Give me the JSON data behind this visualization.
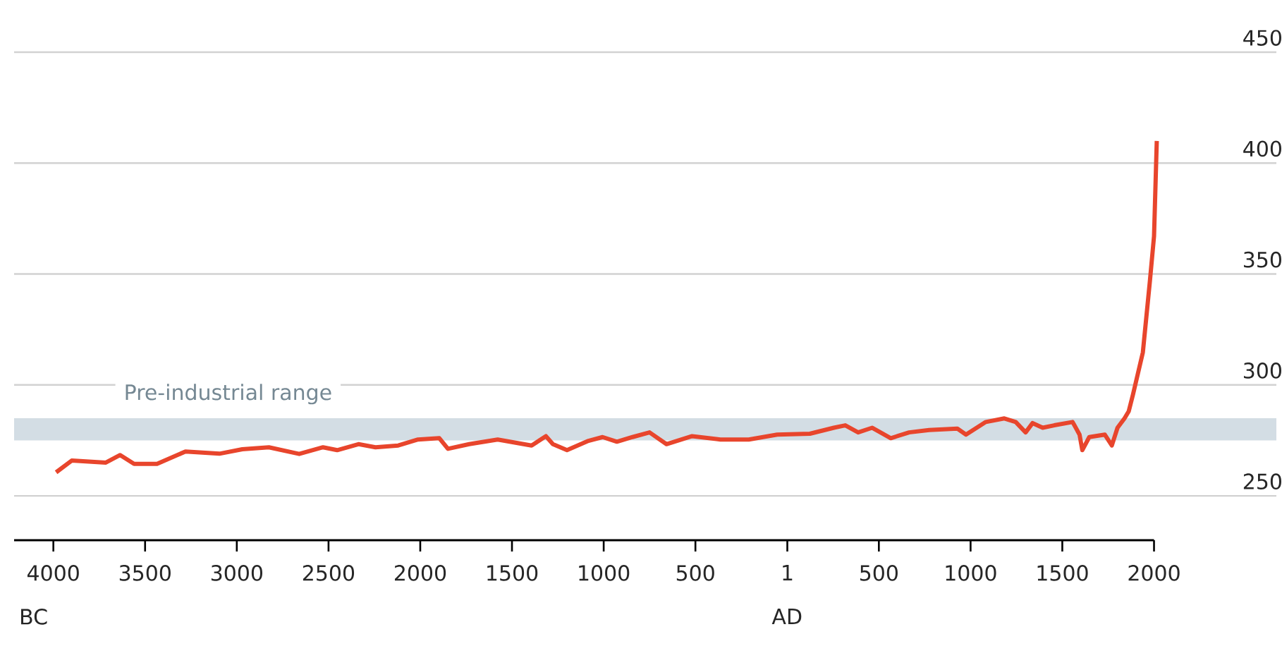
{
  "chart_data": {
    "type": "line",
    "x": [
      -3985,
      -3900,
      -3714,
      -3636,
      -3560,
      -3435,
      -3280,
      -3095,
      -2970,
      -2825,
      -2660,
      -2530,
      -2453,
      -2337,
      -2244,
      -2120,
      -2012,
      -1896,
      -1849,
      -1733,
      -1578,
      -1393,
      -1315,
      -1277,
      -1200,
      -1083,
      -1006,
      -928,
      -843,
      -750,
      -658,
      -518,
      -364,
      -209,
      -54,
      124,
      255,
      317,
      387,
      464,
      565,
      665,
      774,
      928,
      975,
      1083,
      1184,
      1246,
      1300,
      1338,
      1393,
      1456,
      1556,
      1594,
      1609,
      1647,
      1732,
      1770,
      1801,
      1839,
      1862,
      1885,
      1939,
      1977,
      2000,
      2015
    ],
    "series": [
      {
        "color": "#e8452c",
        "values": [
          260.6,
          265.9,
          265,
          268.4,
          264.4,
          264.4,
          270,
          269,
          271,
          271.9,
          268.9,
          271.9,
          270.6,
          273.3,
          271.9,
          272.7,
          275.4,
          276,
          271.2,
          273.3,
          275.4,
          272.7,
          276.9,
          273.3,
          270.6,
          274.8,
          276.5,
          274.4,
          276.5,
          278.6,
          273.3,
          276.9,
          275.4,
          275.4,
          277.6,
          278,
          280.7,
          281.8,
          278.6,
          280.7,
          276,
          278.6,
          279.7,
          280.3,
          277.6,
          283.3,
          284.9,
          283.3,
          278.6,
          282.8,
          280.7,
          281.8,
          283.3,
          277.6,
          270.6,
          276.5,
          277.6,
          272.7,
          280.7,
          284.9,
          288.1,
          295.6,
          314.6,
          346.4,
          367,
          410
        ]
      }
    ],
    "xlim": [
      -4214,
      2667
    ],
    "ylim": [
      230,
      450
    ],
    "xticks": [
      {
        "value": -4000,
        "label": "4000"
      },
      {
        "value": -3500,
        "label": "3500"
      },
      {
        "value": -3000,
        "label": "3000"
      },
      {
        "value": -2500,
        "label": "2500"
      },
      {
        "value": -2000,
        "label": "2000"
      },
      {
        "value": -1500,
        "label": "1500"
      },
      {
        "value": -1000,
        "label": "1000"
      },
      {
        "value": -500,
        "label": "500"
      },
      1,
      500,
      1000,
      1500,
      2000
    ],
    "yticks": [
      250,
      300,
      350,
      400,
      450
    ],
    "grid": "y",
    "marker": "none",
    "line_style": "solid",
    "bands": [
      {
        "axis": "y",
        "from": 275,
        "to": 285,
        "label": "Pre-industrial range",
        "color": "#d3dde4"
      }
    ],
    "annotations": [
      "BC",
      "AD"
    ]
  }
}
